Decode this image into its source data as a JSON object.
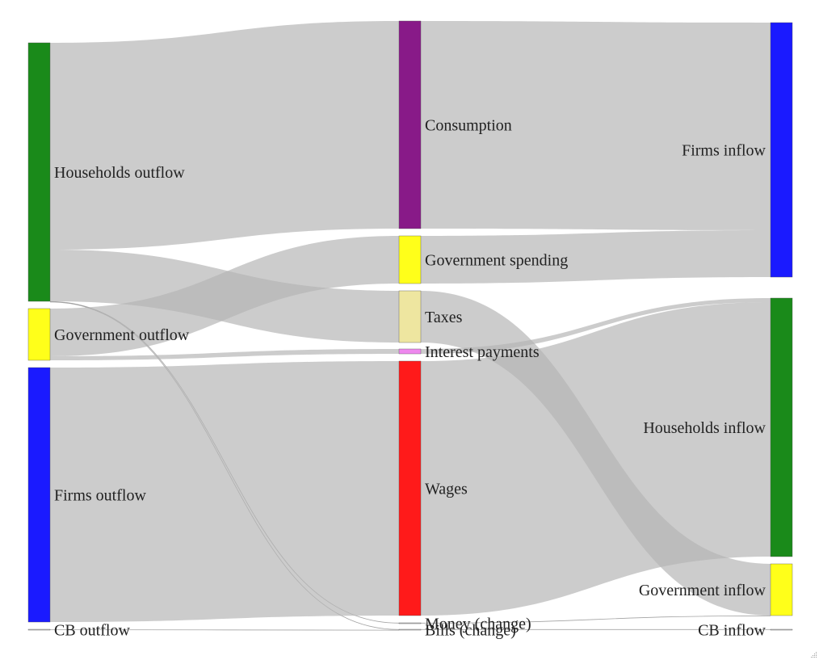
{
  "diagram": {
    "type": "sankey",
    "nodes": [
      {
        "id": "hh_out",
        "label": "Households outflow",
        "color": "#1a8a1a"
      },
      {
        "id": "gov_out",
        "label": "Government outflow",
        "color": "#ffff1a"
      },
      {
        "id": "firms_out",
        "label": "Firms outflow",
        "color": "#1a1aff"
      },
      {
        "id": "cb_out",
        "label": "CB outflow",
        "color": "#cccccc"
      },
      {
        "id": "consumption",
        "label": "Consumption",
        "color": "#881a88"
      },
      {
        "id": "gov_spending",
        "label": "Government spending",
        "color": "#ffff1a"
      },
      {
        "id": "taxes",
        "label": "Taxes",
        "color": "#eee6a0"
      },
      {
        "id": "interest",
        "label": "Interest payments",
        "color": "#ee88ee"
      },
      {
        "id": "wages",
        "label": "Wages",
        "color": "#ff1a1a"
      },
      {
        "id": "money",
        "label": "Money (change)",
        "color": "#cccccc"
      },
      {
        "id": "bills",
        "label": "Bills (change)",
        "color": "#cccccc"
      },
      {
        "id": "firms_in",
        "label": "Firms inflow",
        "color": "#1a1aff"
      },
      {
        "id": "hh_in",
        "label": "Households inflow",
        "color": "#1a8a1a"
      },
      {
        "id": "gov_in",
        "label": "Government inflow",
        "color": "#ffff1a"
      },
      {
        "id": "cb_in",
        "label": "CB inflow",
        "color": "#cccccc"
      }
    ],
    "links": [
      {
        "source": "hh_out",
        "target": "consumption"
      },
      {
        "source": "hh_out",
        "target": "taxes"
      },
      {
        "source": "hh_out",
        "target": "money"
      },
      {
        "source": "hh_out",
        "target": "bills"
      },
      {
        "source": "gov_out",
        "target": "gov_spending"
      },
      {
        "source": "gov_out",
        "target": "interest"
      },
      {
        "source": "firms_out",
        "target": "wages"
      },
      {
        "source": "cb_out",
        "target": "bills"
      },
      {
        "source": "consumption",
        "target": "firms_in"
      },
      {
        "source": "gov_spending",
        "target": "firms_in"
      },
      {
        "source": "taxes",
        "target": "gov_in"
      },
      {
        "source": "interest",
        "target": "hh_in"
      },
      {
        "source": "wages",
        "target": "hh_in"
      },
      {
        "source": "money",
        "target": "cb_in"
      },
      {
        "source": "bills",
        "target": "gov_in"
      }
    ]
  }
}
